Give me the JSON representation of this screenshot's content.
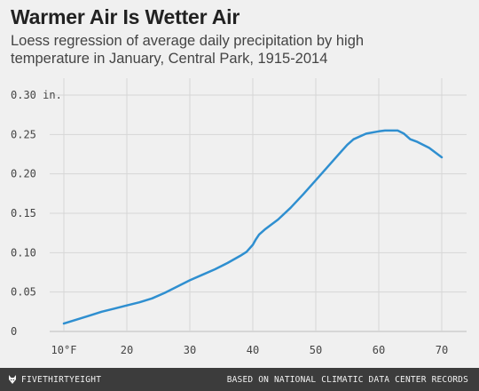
{
  "header": {
    "title": "Warmer Air Is Wetter Air",
    "subtitle": "Loess regression of average daily precipitation by high temperature in January, Central Park, 1915-2014"
  },
  "footer": {
    "brand": "FIVETHIRTYEIGHT",
    "source": "BASED ON NATIONAL CLIMATIC DATA CENTER RECORDS"
  },
  "colors": {
    "line": "#2f8fd0",
    "grid": "#d6d6d6",
    "background": "#f0f0f0",
    "footer": "#3c3c3c"
  },
  "chart_data": {
    "type": "line",
    "title": "Warmer Air Is Wetter Air",
    "xlabel": "",
    "ylabel": "",
    "xlim": [
      9,
      72
    ],
    "ylim": [
      0,
      0.3
    ],
    "grid": true,
    "xticks": [
      10,
      20,
      30,
      40,
      50,
      60,
      70
    ],
    "xtick_labels": [
      "10°F",
      "20",
      "30",
      "40",
      "50",
      "60",
      "70"
    ],
    "yticks": [
      0,
      0.05,
      0.1,
      0.15,
      0.2,
      0.25,
      0.3
    ],
    "ytick_labels": [
      "0",
      "0.05",
      "0.10",
      "0.15",
      "0.20",
      "0.25",
      "0.30 in."
    ],
    "series": [
      {
        "x": [
          10,
          12,
          14,
          16,
          18,
          20,
          22,
          24,
          26,
          28,
          30,
          32,
          34,
          36,
          38,
          39,
          40,
          40.5,
          41,
          42,
          44,
          46,
          48,
          50,
          52,
          54,
          55,
          56,
          58,
          60,
          61,
          62,
          63,
          64,
          65,
          66,
          68,
          70
        ],
        "y": [
          0.01,
          0.015,
          0.02,
          0.025,
          0.029,
          0.033,
          0.037,
          0.042,
          0.049,
          0.057,
          0.065,
          0.072,
          0.079,
          0.087,
          0.096,
          0.101,
          0.11,
          0.117,
          0.123,
          0.13,
          0.142,
          0.157,
          0.174,
          0.192,
          0.21,
          0.228,
          0.237,
          0.244,
          0.251,
          0.254,
          0.255,
          0.255,
          0.255,
          0.251,
          0.244,
          0.241,
          0.233,
          0.221
        ]
      }
    ]
  }
}
